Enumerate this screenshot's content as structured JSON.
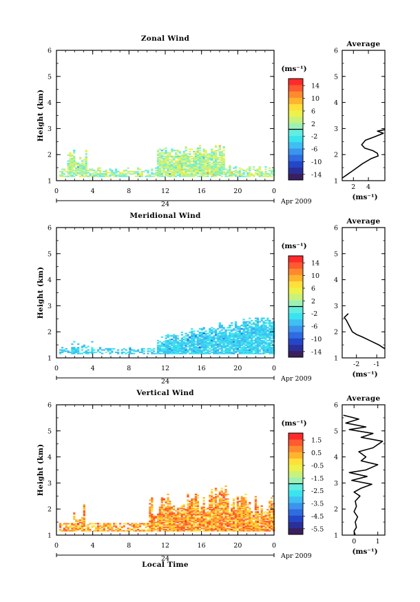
{
  "figure": {
    "xlabel": "Local Time",
    "colors": {
      "frame": "#000000",
      "background": "#ffffff",
      "colormap": [
        "#3a1f5e",
        "#2a2f9a",
        "#2446c8",
        "#2f6ce0",
        "#3b94ee",
        "#3fbff2",
        "#3ae4ee",
        "#63ece0",
        "#9cf2b6",
        "#c8f27a",
        "#ecf24a",
        "#ffe03a",
        "#ffb42e",
        "#ff8a2e",
        "#ff5a30",
        "#ff2a2a"
      ]
    }
  },
  "chart_data": [
    {
      "type": "heatmap",
      "title": "Zonal Wind",
      "ylabel": "Height (km)",
      "x_ticks": [
        "0",
        "4",
        "8",
        "12",
        "16",
        "20",
        "0"
      ],
      "xlim": [
        0,
        24
      ],
      "y_ticks": [
        "1",
        "2",
        "3",
        "4",
        "5",
        "6"
      ],
      "ylim": [
        1,
        6
      ],
      "date_bar": {
        "center_label": "24",
        "right_label": "Apr 2009"
      },
      "colorbar": {
        "unit": "(ms⁻¹)",
        "ticks": [
          "14",
          "10",
          "6",
          "2",
          "-2",
          "-6",
          "-10",
          "-14"
        ],
        "range": [
          -16,
          16
        ]
      },
      "data_region": {
        "x_start": 0.3,
        "x_end": 24,
        "z_bottom": 1.15,
        "z_top_max": 2.45,
        "dominant_range": [
          -2,
          6
        ]
      },
      "average_profile": {
        "title": "Average",
        "x_ticks": [
          "2",
          "4"
        ],
        "xlim": [
          0.5,
          6.2
        ],
        "xlabel": "(ms⁻¹)",
        "y_ticks": [
          "1",
          "2",
          "3",
          "4",
          "5",
          "6"
        ],
        "ylim": [
          1,
          6
        ],
        "points": [
          [
            0.5,
            1.1
          ],
          [
            2.0,
            1.4
          ],
          [
            3.2,
            1.65
          ],
          [
            4.4,
            1.85
          ],
          [
            5.3,
            1.95
          ],
          [
            5.2,
            2.05
          ],
          [
            4.6,
            2.15
          ],
          [
            3.5,
            2.25
          ],
          [
            3.1,
            2.38
          ],
          [
            3.6,
            2.55
          ],
          [
            4.8,
            2.68
          ],
          [
            6.0,
            2.82
          ],
          [
            5.2,
            2.9
          ],
          [
            6.2,
            2.96
          ]
        ]
      }
    },
    {
      "type": "heatmap",
      "title": "Meridional Wind",
      "ylabel": "Height (km)",
      "x_ticks": [
        "0",
        "4",
        "8",
        "12",
        "16",
        "20",
        "0"
      ],
      "xlim": [
        0,
        24
      ],
      "y_ticks": [
        "1",
        "2",
        "3",
        "4",
        "5",
        "6"
      ],
      "ylim": [
        1,
        6
      ],
      "date_bar": {
        "center_label": "24",
        "right_label": "Apr 2009"
      },
      "colorbar": {
        "unit": "(ms⁻¹)",
        "ticks": [
          "14",
          "10",
          "6",
          "2",
          "-2",
          "-6",
          "-10",
          "-14"
        ],
        "range": [
          -16,
          16
        ]
      },
      "data_region": {
        "x_start": 0.3,
        "x_end": 24,
        "z_bottom": 1.15,
        "z_top_max": 2.5,
        "dominant_range": [
          -6,
          -2
        ]
      },
      "average_profile": {
        "title": "Average",
        "x_ticks": [
          "-2",
          "-1"
        ],
        "xlim": [
          -2.7,
          -0.6
        ],
        "xlabel": "(ms⁻¹)",
        "y_ticks": [
          "1",
          "2",
          "3",
          "4",
          "5",
          "6"
        ],
        "ylim": [
          1,
          6
        ],
        "points": [
          [
            -0.6,
            1.35
          ],
          [
            -0.9,
            1.5
          ],
          [
            -1.3,
            1.65
          ],
          [
            -1.7,
            1.8
          ],
          [
            -2.0,
            1.9
          ],
          [
            -2.2,
            2.0
          ],
          [
            -2.3,
            2.15
          ],
          [
            -2.4,
            2.3
          ],
          [
            -2.5,
            2.45
          ],
          [
            -2.6,
            2.55
          ],
          [
            -2.4,
            2.7
          ]
        ]
      }
    },
    {
      "type": "heatmap",
      "title": "Vertical Wind",
      "ylabel": "Height (km)",
      "x_ticks": [
        "0",
        "4",
        "8",
        "12",
        "16",
        "20",
        "0"
      ],
      "xlim": [
        0,
        24
      ],
      "y_ticks": [
        "1",
        "2",
        "3",
        "4",
        "5",
        "6"
      ],
      "ylim": [
        1,
        6
      ],
      "date_bar": {
        "center_label": "24",
        "right_label": "Apr 2009"
      },
      "colorbar": {
        "unit": "(ms⁻¹)",
        "ticks": [
          "1.5",
          "0.5",
          "-0.5",
          "-1.5",
          "-2.5",
          "-3.5",
          "-4.5",
          "-5.5"
        ],
        "range": [
          -6,
          2
        ]
      },
      "data_region": {
        "x_start": 0.3,
        "x_end": 24,
        "z_bottom": 1.15,
        "z_top_max": 2.95,
        "dominant_range": [
          -0.5,
          1.5
        ]
      },
      "average_profile": {
        "title": "Average",
        "x_ticks": [
          "0",
          "1"
        ],
        "xlim": [
          -0.5,
          1.3
        ],
        "xlabel": "(ms⁻¹)",
        "y_ticks": [
          "1",
          "2",
          "3",
          "4",
          "5",
          "6"
        ],
        "ylim": [
          1,
          6
        ],
        "points": [
          [
            0.05,
            1.0
          ],
          [
            0.0,
            1.15
          ],
          [
            0.1,
            1.3
          ],
          [
            0.05,
            1.5
          ],
          [
            0.15,
            1.7
          ],
          [
            0.0,
            1.9
          ],
          [
            0.1,
            2.1
          ],
          [
            0.05,
            2.3
          ],
          [
            0.25,
            2.5
          ],
          [
            0.0,
            2.65
          ],
          [
            0.3,
            2.8
          ],
          [
            0.75,
            2.95
          ],
          [
            -0.1,
            3.1
          ],
          [
            0.55,
            3.25
          ],
          [
            -0.2,
            3.4
          ],
          [
            0.5,
            3.5
          ],
          [
            1.0,
            3.7
          ],
          [
            0.3,
            3.85
          ],
          [
            0.5,
            4.0
          ],
          [
            0.2,
            4.2
          ],
          [
            0.8,
            4.35
          ],
          [
            1.2,
            4.6
          ],
          [
            0.3,
            4.75
          ],
          [
            0.8,
            4.9
          ],
          [
            -0.2,
            5.05
          ],
          [
            0.5,
            5.15
          ],
          [
            -0.35,
            5.3
          ],
          [
            0.2,
            5.45
          ],
          [
            -0.45,
            5.6
          ]
        ]
      }
    }
  ]
}
